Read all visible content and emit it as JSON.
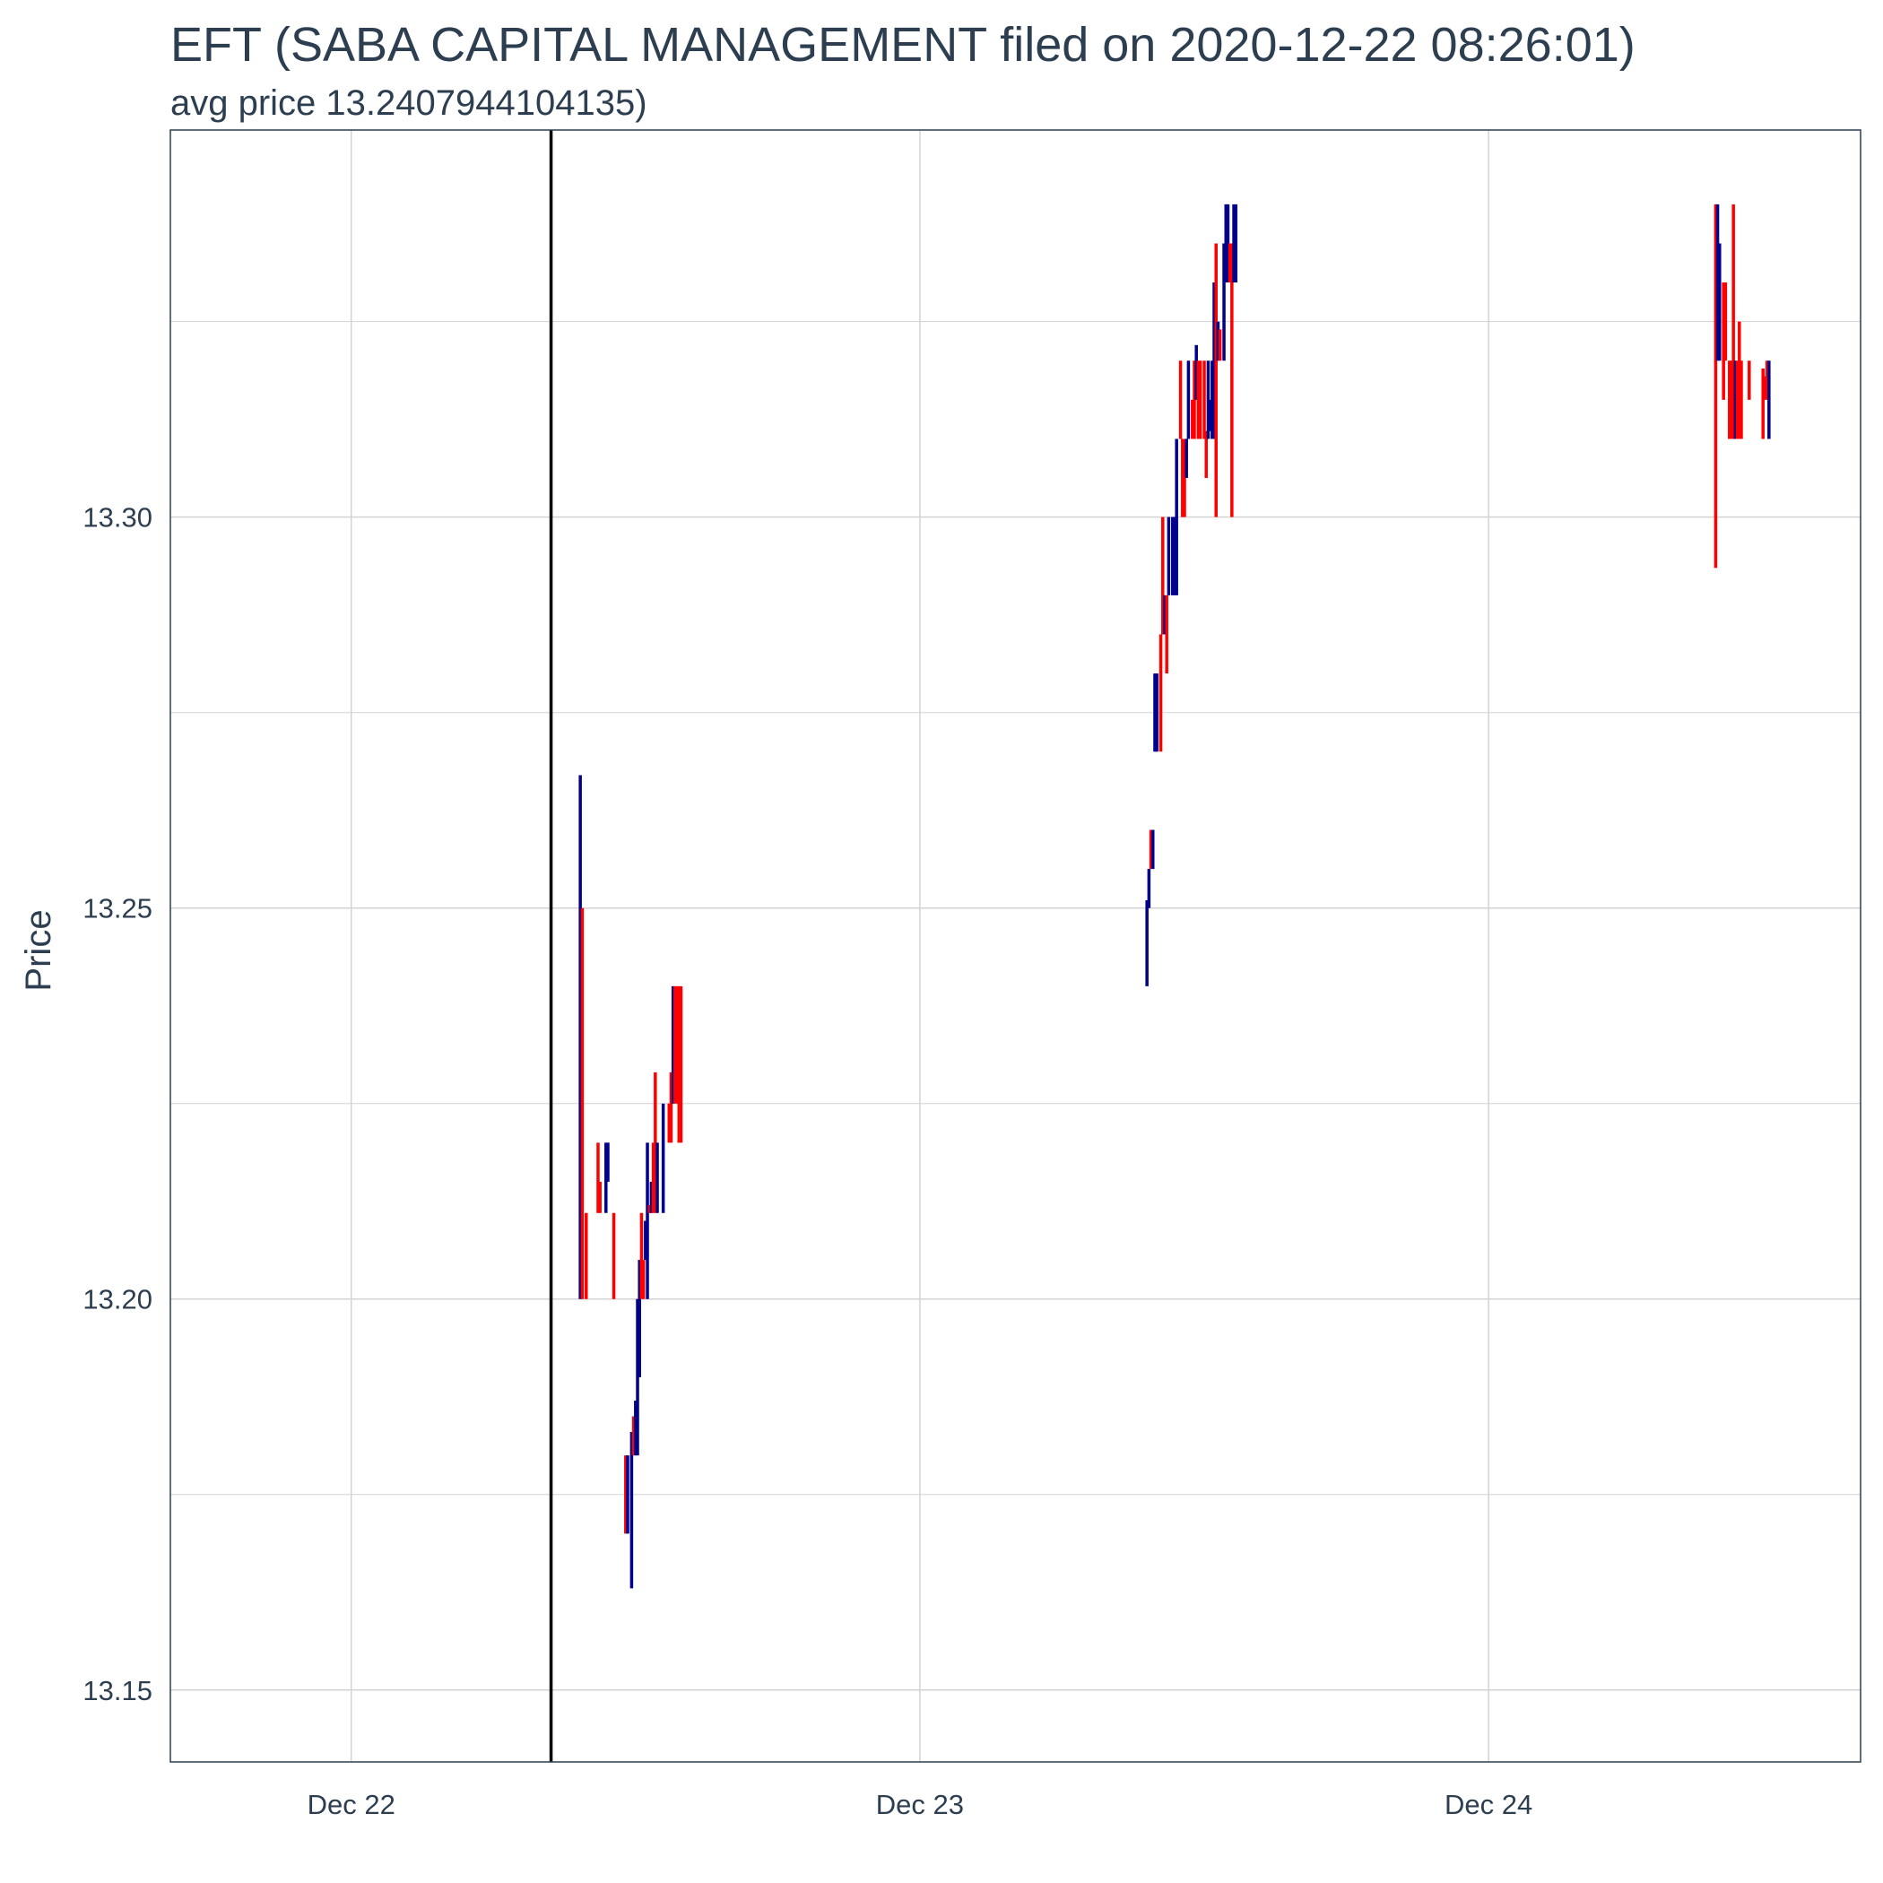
{
  "chart_data": {
    "type": "ohlc",
    "title": "EFT (SABA CAPITAL MANAGEMENT filed on 2020-12-22 08:26:01)",
    "subtitle": "avg price 13.2407944104135)",
    "xlabel": "",
    "ylabel": "Price",
    "xlim": [
      "2020-12-21 16:22",
      "2020-12-24 15:42"
    ],
    "ylim": [
      13.1408,
      13.3495
    ],
    "grid": true,
    "x_ticks": [
      {
        "date": "2020-12-22 00:00",
        "label": "Dec 22"
      },
      {
        "date": "2020-12-23 00:00",
        "label": "Dec 23"
      },
      {
        "date": "2020-12-24 00:00",
        "label": "Dec 24"
      }
    ],
    "y_ticks": [
      13.15,
      13.2,
      13.25,
      13.3
    ],
    "filing_marker": "2020-12-22 08:26:01",
    "colors": {
      "up": "#00008b",
      "down": "#ff0000",
      "marker": "#000000",
      "grid": "#d3d3d3",
      "panel_border": "#2c3e50"
    },
    "bars": [
      {
        "t": "2020-12-22 09:40",
        "l": 13.2,
        "h": 13.267,
        "dir": "up"
      },
      {
        "t": "2020-12-22 09:45",
        "l": 13.2,
        "h": 13.25,
        "dir": "down"
      },
      {
        "t": "2020-12-22 09:55",
        "l": 13.2,
        "h": 13.211,
        "dir": "down"
      },
      {
        "t": "2020-12-22 10:25",
        "l": 13.211,
        "h": 13.22,
        "dir": "down"
      },
      {
        "t": "2020-12-22 10:30",
        "l": 13.211,
        "h": 13.215,
        "dir": "down"
      },
      {
        "t": "2020-12-22 10:45",
        "l": 13.211,
        "h": 13.22,
        "dir": "up"
      },
      {
        "t": "2020-12-22 10:50",
        "l": 13.215,
        "h": 13.22,
        "dir": "up"
      },
      {
        "t": "2020-12-22 11:05",
        "l": 13.2,
        "h": 13.211,
        "dir": "down"
      },
      {
        "t": "2020-12-22 11:35",
        "l": 13.17,
        "h": 13.18,
        "dir": "down"
      },
      {
        "t": "2020-12-22 11:40",
        "l": 13.17,
        "h": 13.18,
        "dir": "up"
      },
      {
        "t": "2020-12-22 11:50",
        "l": 13.163,
        "h": 13.183,
        "dir": "up"
      },
      {
        "t": "2020-12-22 11:55",
        "l": 13.18,
        "h": 13.185,
        "dir": "down"
      },
      {
        "t": "2020-12-22 12:00",
        "l": 13.18,
        "h": 13.187,
        "dir": "up"
      },
      {
        "t": "2020-12-22 12:05",
        "l": 13.18,
        "h": 13.2,
        "dir": "up"
      },
      {
        "t": "2020-12-22 12:10",
        "l": 13.19,
        "h": 13.205,
        "dir": "up"
      },
      {
        "t": "2020-12-22 12:15",
        "l": 13.2,
        "h": 13.211,
        "dir": "down"
      },
      {
        "t": "2020-12-22 12:20",
        "l": 13.2,
        "h": 13.205,
        "dir": "down"
      },
      {
        "t": "2020-12-22 12:25",
        "l": 13.205,
        "h": 13.21,
        "dir": "up"
      },
      {
        "t": "2020-12-22 12:30",
        "l": 13.2,
        "h": 13.22,
        "dir": "up"
      },
      {
        "t": "2020-12-22 12:35",
        "l": 13.211,
        "h": 13.212,
        "dir": "down"
      },
      {
        "t": "2020-12-22 12:40",
        "l": 13.211,
        "h": 13.215,
        "dir": "up"
      },
      {
        "t": "2020-12-22 12:45",
        "l": 13.211,
        "h": 13.22,
        "dir": "down"
      },
      {
        "t": "2020-12-22 12:50",
        "l": 13.211,
        "h": 13.229,
        "dir": "down"
      },
      {
        "t": "2020-12-22 12:55",
        "l": 13.211,
        "h": 13.22,
        "dir": "up"
      },
      {
        "t": "2020-12-22 13:10",
        "l": 13.211,
        "h": 13.225,
        "dir": "up"
      },
      {
        "t": "2020-12-22 13:25",
        "l": 13.22,
        "h": 13.225,
        "dir": "down"
      },
      {
        "t": "2020-12-22 13:30",
        "l": 13.22,
        "h": 13.229,
        "dir": "down"
      },
      {
        "t": "2020-12-22 13:35",
        "l": 13.225,
        "h": 13.24,
        "dir": "up"
      },
      {
        "t": "2020-12-22 13:40",
        "l": 13.225,
        "h": 13.24,
        "dir": "down"
      },
      {
        "t": "2020-12-22 13:45",
        "l": 13.225,
        "h": 13.24,
        "dir": "down"
      },
      {
        "t": "2020-12-22 13:50",
        "l": 13.22,
        "h": 13.24,
        "dir": "down"
      },
      {
        "t": "2020-12-22 13:55",
        "l": 13.22,
        "h": 13.24,
        "dir": "down"
      },
      {
        "t": "2020-12-23 09:35",
        "l": 13.24,
        "h": 13.251,
        "dir": "up"
      },
      {
        "t": "2020-12-23 09:40",
        "l": 13.25,
        "h": 13.255,
        "dir": "up"
      },
      {
        "t": "2020-12-23 09:45",
        "l": 13.255,
        "h": 13.26,
        "dir": "down"
      },
      {
        "t": "2020-12-23 09:50",
        "l": 13.255,
        "h": 13.26,
        "dir": "up"
      },
      {
        "t": "2020-12-23 09:55",
        "l": 13.27,
        "h": 13.28,
        "dir": "up"
      },
      {
        "t": "2020-12-23 10:00",
        "l": 13.27,
        "h": 13.28,
        "dir": "up"
      },
      {
        "t": "2020-12-23 10:10",
        "l": 13.27,
        "h": 13.285,
        "dir": "down"
      },
      {
        "t": "2020-12-23 10:15",
        "l": 13.285,
        "h": 13.3,
        "dir": "down"
      },
      {
        "t": "2020-12-23 10:20",
        "l": 13.285,
        "h": 13.29,
        "dir": "up"
      },
      {
        "t": "2020-12-23 10:25",
        "l": 13.28,
        "h": 13.29,
        "dir": "down"
      },
      {
        "t": "2020-12-23 10:30",
        "l": 13.29,
        "h": 13.3,
        "dir": "up"
      },
      {
        "t": "2020-12-23 10:40",
        "l": 13.29,
        "h": 13.3,
        "dir": "up"
      },
      {
        "t": "2020-12-23 10:45",
        "l": 13.29,
        "h": 13.3,
        "dir": "up"
      },
      {
        "t": "2020-12-23 10:50",
        "l": 13.29,
        "h": 13.31,
        "dir": "up"
      },
      {
        "t": "2020-12-23 11:00",
        "l": 13.31,
        "h": 13.32,
        "dir": "down"
      },
      {
        "t": "2020-12-23 11:05",
        "l": 13.3,
        "h": 13.31,
        "dir": "down"
      },
      {
        "t": "2020-12-23 11:10",
        "l": 13.3,
        "h": 13.31,
        "dir": "down"
      },
      {
        "t": "2020-12-23 11:15",
        "l": 13.305,
        "h": 13.31,
        "dir": "up"
      },
      {
        "t": "2020-12-23 11:20",
        "l": 13.31,
        "h": 13.32,
        "dir": "up"
      },
      {
        "t": "2020-12-23 11:30",
        "l": 13.31,
        "h": 13.315,
        "dir": "down"
      },
      {
        "t": "2020-12-23 11:35",
        "l": 13.31,
        "h": 13.32,
        "dir": "down"
      },
      {
        "t": "2020-12-23 11:40",
        "l": 13.315,
        "h": 13.322,
        "dir": "up"
      },
      {
        "t": "2020-12-23 11:45",
        "l": 13.31,
        "h": 13.32,
        "dir": "down"
      },
      {
        "t": "2020-12-23 11:50",
        "l": 13.31,
        "h": 13.32,
        "dir": "down"
      },
      {
        "t": "2020-12-23 12:00",
        "l": 13.31,
        "h": 13.32,
        "dir": "down"
      },
      {
        "t": "2020-12-23 12:05",
        "l": 13.305,
        "h": 13.311,
        "dir": "down"
      },
      {
        "t": "2020-12-23 12:10",
        "l": 13.31,
        "h": 13.32,
        "dir": "up"
      },
      {
        "t": "2020-12-23 12:15",
        "l": 13.311,
        "h": 13.315,
        "dir": "up"
      },
      {
        "t": "2020-12-23 12:20",
        "l": 13.31,
        "h": 13.32,
        "dir": "up"
      },
      {
        "t": "2020-12-23 12:25",
        "l": 13.31,
        "h": 13.33,
        "dir": "up"
      },
      {
        "t": "2020-12-23 12:30",
        "l": 13.3,
        "h": 13.335,
        "dir": "down"
      },
      {
        "t": "2020-12-23 12:35",
        "l": 13.32,
        "h": 13.325,
        "dir": "up"
      },
      {
        "t": "2020-12-23 12:40",
        "l": 13.32,
        "h": 13.324,
        "dir": "down"
      },
      {
        "t": "2020-12-23 12:50",
        "l": 13.32,
        "h": 13.335,
        "dir": "up"
      },
      {
        "t": "2020-12-23 12:55",
        "l": 13.33,
        "h": 13.34,
        "dir": "up"
      },
      {
        "t": "2020-12-23 13:00",
        "l": 13.33,
        "h": 13.34,
        "dir": "up"
      },
      {
        "t": "2020-12-23 13:05",
        "l": 13.33,
        "h": 13.335,
        "dir": "down"
      },
      {
        "t": "2020-12-23 13:10",
        "l": 13.3,
        "h": 13.335,
        "dir": "down"
      },
      {
        "t": "2020-12-23 13:15",
        "l": 13.33,
        "h": 13.34,
        "dir": "up"
      },
      {
        "t": "2020-12-23 13:20",
        "l": 13.33,
        "h": 13.34,
        "dir": "up"
      },
      {
        "t": "2020-12-24 09:35",
        "l": 13.2935,
        "h": 13.34,
        "dir": "down"
      },
      {
        "t": "2020-12-24 09:40",
        "l": 13.32,
        "h": 13.34,
        "dir": "up"
      },
      {
        "t": "2020-12-24 09:45",
        "l": 13.32,
        "h": 13.335,
        "dir": "up"
      },
      {
        "t": "2020-12-24 09:55",
        "l": 13.315,
        "h": 13.33,
        "dir": "down"
      },
      {
        "t": "2020-12-24 10:00",
        "l": 13.32,
        "h": 13.33,
        "dir": "down"
      },
      {
        "t": "2020-12-24 10:10",
        "l": 13.31,
        "h": 13.32,
        "dir": "down"
      },
      {
        "t": "2020-12-24 10:15",
        "l": 13.31,
        "h": 13.32,
        "dir": "down"
      },
      {
        "t": "2020-12-24 10:20",
        "l": 13.31,
        "h": 13.34,
        "dir": "down"
      },
      {
        "t": "2020-12-24 10:25",
        "l": 13.31,
        "h": 13.32,
        "dir": "up"
      },
      {
        "t": "2020-12-24 10:30",
        "l": 13.31,
        "h": 13.32,
        "dir": "down"
      },
      {
        "t": "2020-12-24 10:35",
        "l": 13.31,
        "h": 13.325,
        "dir": "down"
      },
      {
        "t": "2020-12-24 10:40",
        "l": 13.31,
        "h": 13.32,
        "dir": "down"
      },
      {
        "t": "2020-12-24 11:00",
        "l": 13.315,
        "h": 13.32,
        "dir": "down"
      },
      {
        "t": "2020-12-24 11:35",
        "l": 13.31,
        "h": 13.319,
        "dir": "down"
      },
      {
        "t": "2020-12-24 11:40",
        "l": 13.315,
        "h": 13.318,
        "dir": "down"
      },
      {
        "t": "2020-12-24 11:45",
        "l": 13.315,
        "h": 13.32,
        "dir": "down"
      },
      {
        "t": "2020-12-24 11:50",
        "l": 13.31,
        "h": 13.32,
        "dir": "up"
      }
    ]
  }
}
